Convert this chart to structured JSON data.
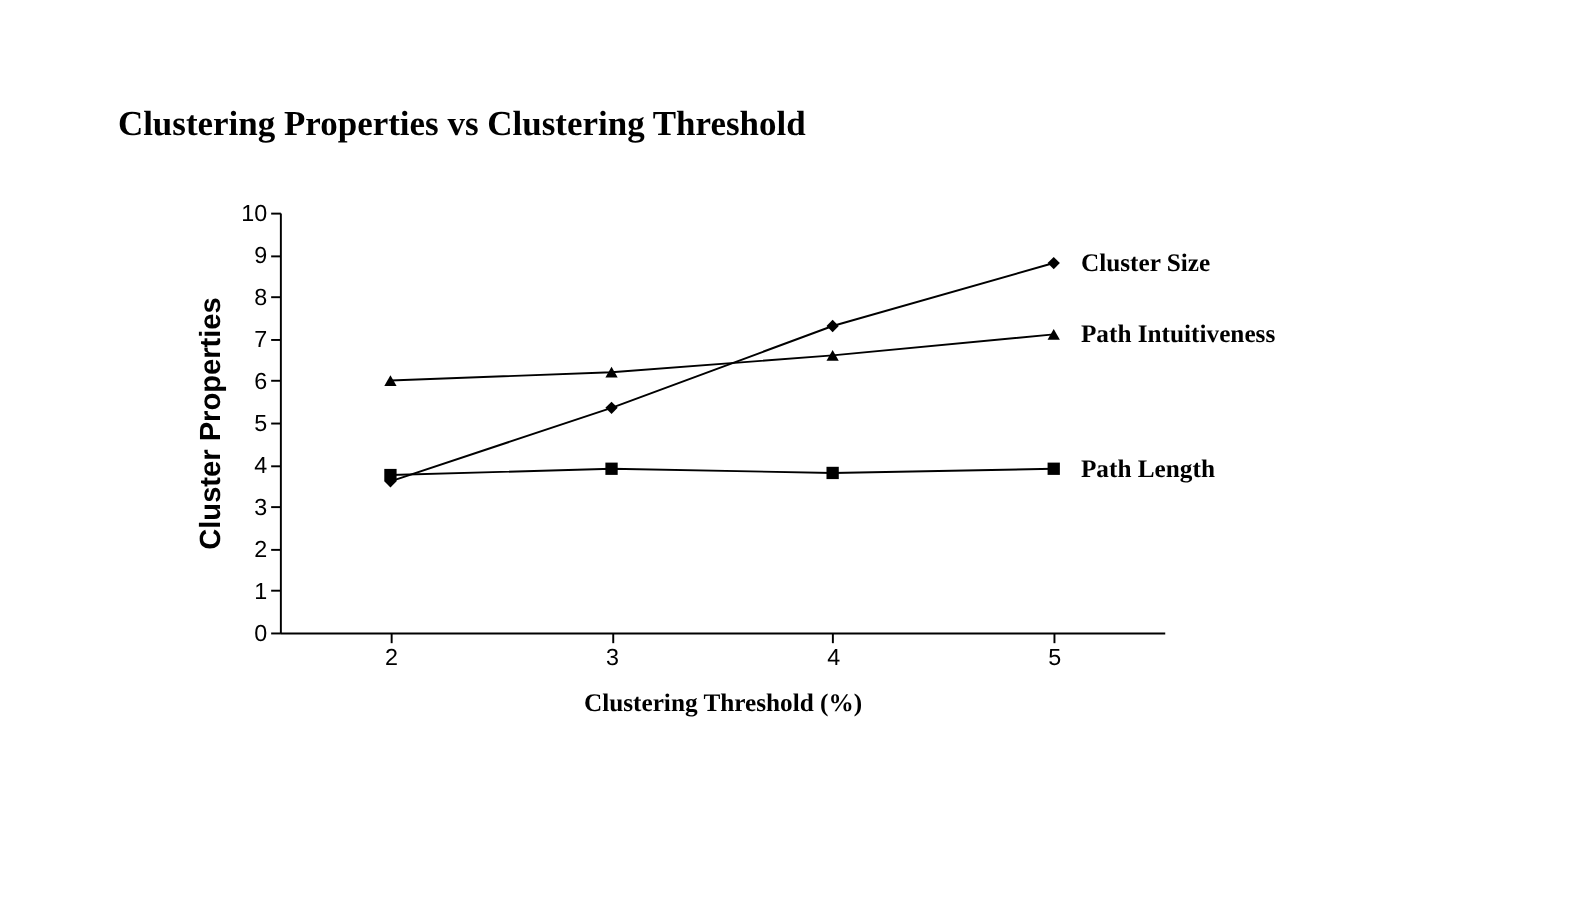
{
  "chart_data": {
    "type": "line",
    "title": "Clustering Properties vs Clustering Threshold",
    "xlabel": "Clustering Threshold (%)",
    "ylabel": "Cluster Properties",
    "categories": [
      "2",
      "3",
      "4",
      "5"
    ],
    "series": [
      {
        "name": "Cluster Size",
        "color": "#000000",
        "marker": "diamond",
        "values": [
          3.6,
          5.35,
          7.3,
          8.8
        ]
      },
      {
        "name": "Path Intuitiveness",
        "color": "#000000",
        "marker": "triangle",
        "values": [
          6.0,
          6.2,
          6.6,
          7.1
        ]
      },
      {
        "name": "Path Length",
        "color": "#000000",
        "marker": "square",
        "values": [
          3.75,
          3.9,
          3.8,
          3.9
        ]
      }
    ],
    "ylim": [
      0,
      10
    ],
    "yticks": [
      0,
      1,
      2,
      3,
      4,
      5,
      6,
      7,
      8,
      9,
      10
    ],
    "grid": false,
    "legend": false,
    "line_style": "solid"
  }
}
